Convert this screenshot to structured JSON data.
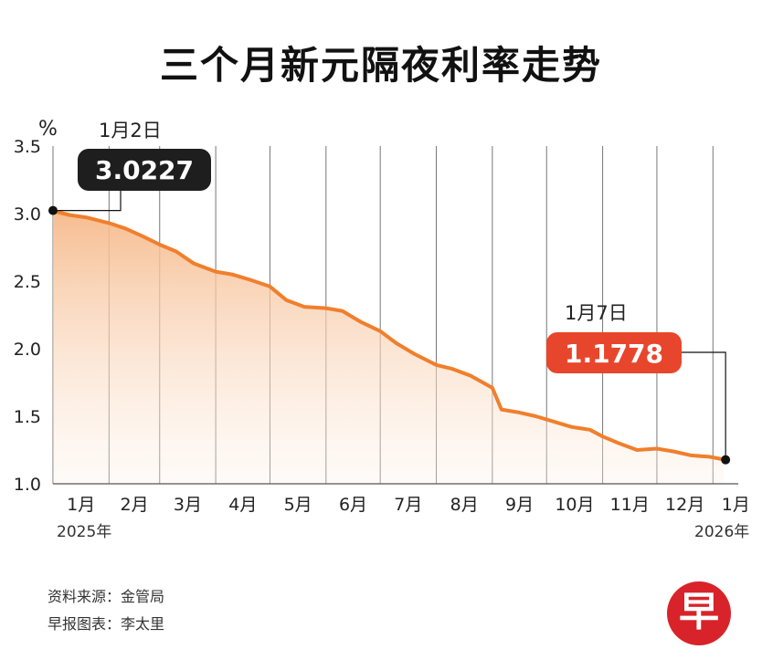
{
  "title": "三个月新元隔夜利率走势",
  "chart_data": {
    "type": "area",
    "unit_label": "%",
    "y_ticks": [
      "1.0",
      "1.5",
      "2.0",
      "2.5",
      "3.0",
      "3.5"
    ],
    "ylim": [
      1.0,
      3.5
    ],
    "x_ticks": [
      "1月",
      "2月",
      "3月",
      "4月",
      "5月",
      "6月",
      "7月",
      "8月",
      "9月",
      "10月",
      "11月",
      "12月",
      "1月"
    ],
    "year_start": "2025年",
    "year_end": "2026年",
    "line_color": "#f07f2c",
    "fill_color_top": "#f6b98a",
    "grid": "vertical lines at month boundaries",
    "series": [
      {
        "points": [
          [
            "2025-01-02",
            3.02
          ],
          [
            "2025-01-10",
            2.99
          ],
          [
            "2025-01-20",
            2.97
          ],
          [
            "2025-02-01",
            2.93
          ],
          [
            "2025-02-10",
            2.89
          ],
          [
            "2025-02-20",
            2.83
          ],
          [
            "2025-03-01",
            2.77
          ],
          [
            "2025-03-10",
            2.72
          ],
          [
            "2025-03-20",
            2.63
          ],
          [
            "2025-04-01",
            2.57
          ],
          [
            "2025-04-10",
            2.55
          ],
          [
            "2025-04-20",
            2.51
          ],
          [
            "2025-05-01",
            2.46
          ],
          [
            "2025-05-10",
            2.36
          ],
          [
            "2025-05-20",
            2.31
          ],
          [
            "2025-06-01",
            2.3
          ],
          [
            "2025-06-10",
            2.28
          ],
          [
            "2025-06-20",
            2.2
          ],
          [
            "2025-07-01",
            2.13
          ],
          [
            "2025-07-10",
            2.04
          ],
          [
            "2025-07-20",
            1.96
          ],
          [
            "2025-08-01",
            1.88
          ],
          [
            "2025-08-10",
            1.85
          ],
          [
            "2025-08-20",
            1.8
          ],
          [
            "2025-09-01",
            1.71
          ],
          [
            "2025-09-06",
            1.55
          ],
          [
            "2025-09-15",
            1.53
          ],
          [
            "2025-09-25",
            1.5
          ],
          [
            "2025-10-05",
            1.46
          ],
          [
            "2025-10-15",
            1.42
          ],
          [
            "2025-10-25",
            1.4
          ],
          [
            "2025-11-01",
            1.35
          ],
          [
            "2025-11-10",
            1.3
          ],
          [
            "2025-11-20",
            1.25
          ],
          [
            "2025-12-01",
            1.26
          ],
          [
            "2025-12-10",
            1.24
          ],
          [
            "2025-12-20",
            1.21
          ],
          [
            "2025-12-30",
            1.2
          ],
          [
            "2026-01-07",
            1.18
          ]
        ]
      }
    ],
    "annotations": [
      {
        "date_label": "1月2日",
        "value_label": "3.0227",
        "value": 3.0227,
        "x": "2025-01-02",
        "box_color": "#1e1e1e"
      },
      {
        "date_label": "1月7日",
        "value_label": "1.1778",
        "value": 1.1778,
        "x": "2026-01-07",
        "box_color": "#e8462c"
      }
    ]
  },
  "footer": {
    "source": "资料来源：金管局",
    "credit": "早报图表：李太里"
  },
  "logo": {
    "glyph": "早"
  }
}
